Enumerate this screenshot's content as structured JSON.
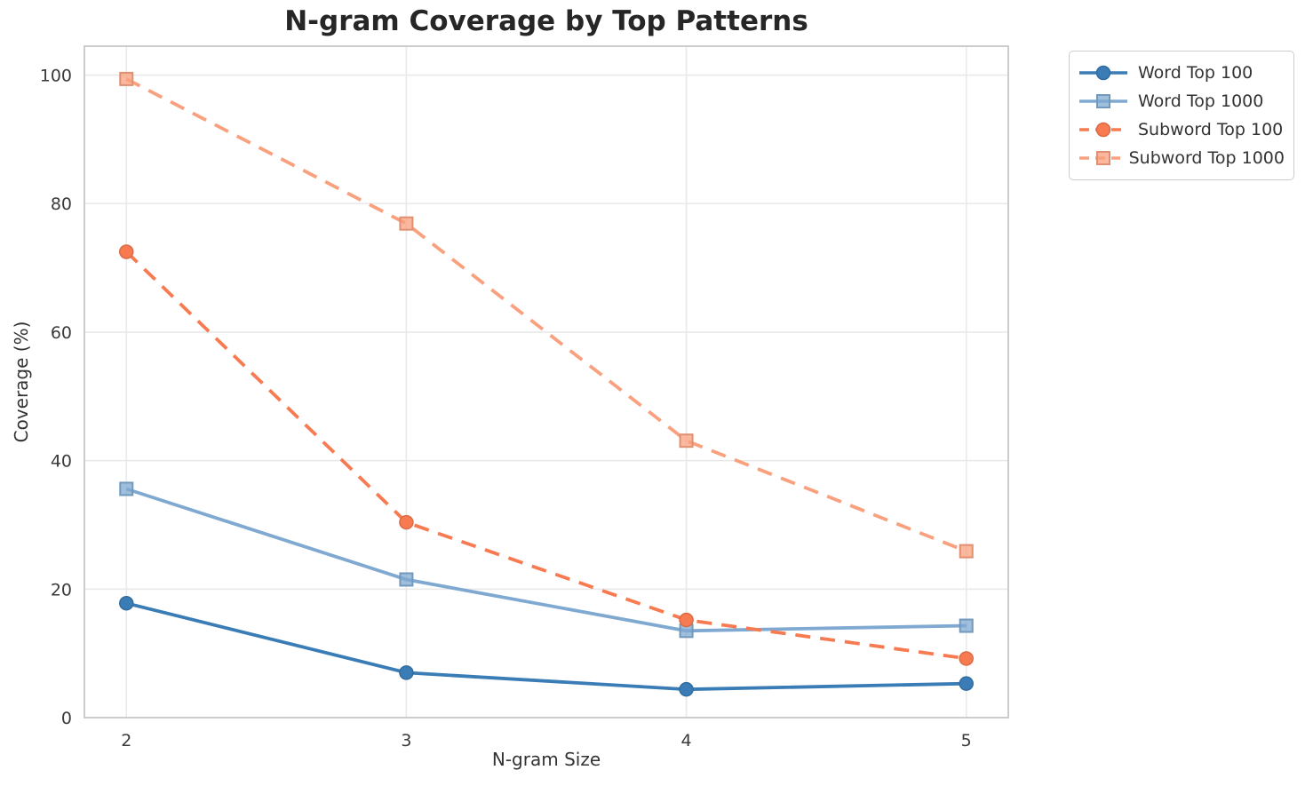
{
  "chart_data": {
    "type": "line",
    "title": "N-gram Coverage by Top Patterns",
    "xlabel": "N-gram Size",
    "ylabel": "Coverage (%)",
    "x": [
      2,
      3,
      4,
      5
    ],
    "xticks": [
      "2",
      "3",
      "4",
      "5"
    ],
    "yticks": [
      "0",
      "20",
      "40",
      "60",
      "80",
      "100"
    ],
    "ytick_values": [
      0,
      20,
      40,
      60,
      80,
      100
    ],
    "xlim": [
      1.85,
      5.15
    ],
    "ylim": [
      0,
      104.5
    ],
    "grid": true,
    "legend_position": "outside-top-right",
    "series": [
      {
        "name": "Word Top 100",
        "values": [
          17.8,
          7.0,
          4.4,
          5.3
        ],
        "color": "#3a7cb5",
        "marker": "circle",
        "linestyle": "solid"
      },
      {
        "name": "Word Top 1000",
        "values": [
          35.6,
          21.5,
          13.5,
          14.3
        ],
        "color": "#7fa9d1",
        "marker": "square",
        "linestyle": "solid"
      },
      {
        "name": "Subword Top 100",
        "values": [
          72.5,
          30.4,
          15.2,
          9.2
        ],
        "color": "#f87a51",
        "marker": "circle",
        "linestyle": "dashed"
      },
      {
        "name": "Subword Top 1000",
        "values": [
          99.4,
          76.9,
          43.1,
          25.9
        ],
        "color": "#f9a07e",
        "marker": "square",
        "linestyle": "dashed"
      }
    ],
    "styles": {
      "background": "#ffffff",
      "grid_color": "#e9e9e9",
      "spine_color": "#cccccc",
      "tick_color": "#3a3a3a",
      "title_color": "#262626",
      "label_color": "#333333",
      "legend_border": "#cccccc"
    }
  }
}
